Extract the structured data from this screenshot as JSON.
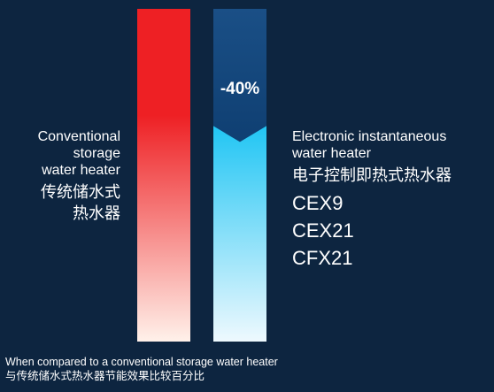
{
  "chart_data": {
    "type": "bar",
    "title": "",
    "categories": [
      "Conventional storage water heater",
      "Electronic instantaneous water heater"
    ],
    "values": [
      100,
      60
    ],
    "unit": "%",
    "ylim": [
      0,
      100
    ],
    "annotation": "-40%",
    "colors": {
      "conventional_top": "#ee2024",
      "conventional_bottom": "#fff1ea",
      "electronic_top": "#1a4f86",
      "electronic_band_bottom": "#0f3f72",
      "electronic_light_top": "#00bdf2",
      "electronic_light_bottom": "#eef9fe",
      "background": "#0d2540"
    }
  },
  "labels": {
    "conventional": {
      "en": [
        "Conventional",
        "storage",
        "water heater"
      ],
      "cn": [
        "传统储水式",
        "热水器"
      ]
    },
    "electronic": {
      "en": [
        "Electronic instantaneous",
        "water heater"
      ],
      "cn": "电子控制即热式热水器",
      "models": [
        "CEX9",
        "CEX21",
        "CFX21"
      ]
    }
  },
  "footer": {
    "en": "When compared to a conventional storage water heater",
    "cn": "与传统储水式热水器节能效果比较百分比"
  }
}
